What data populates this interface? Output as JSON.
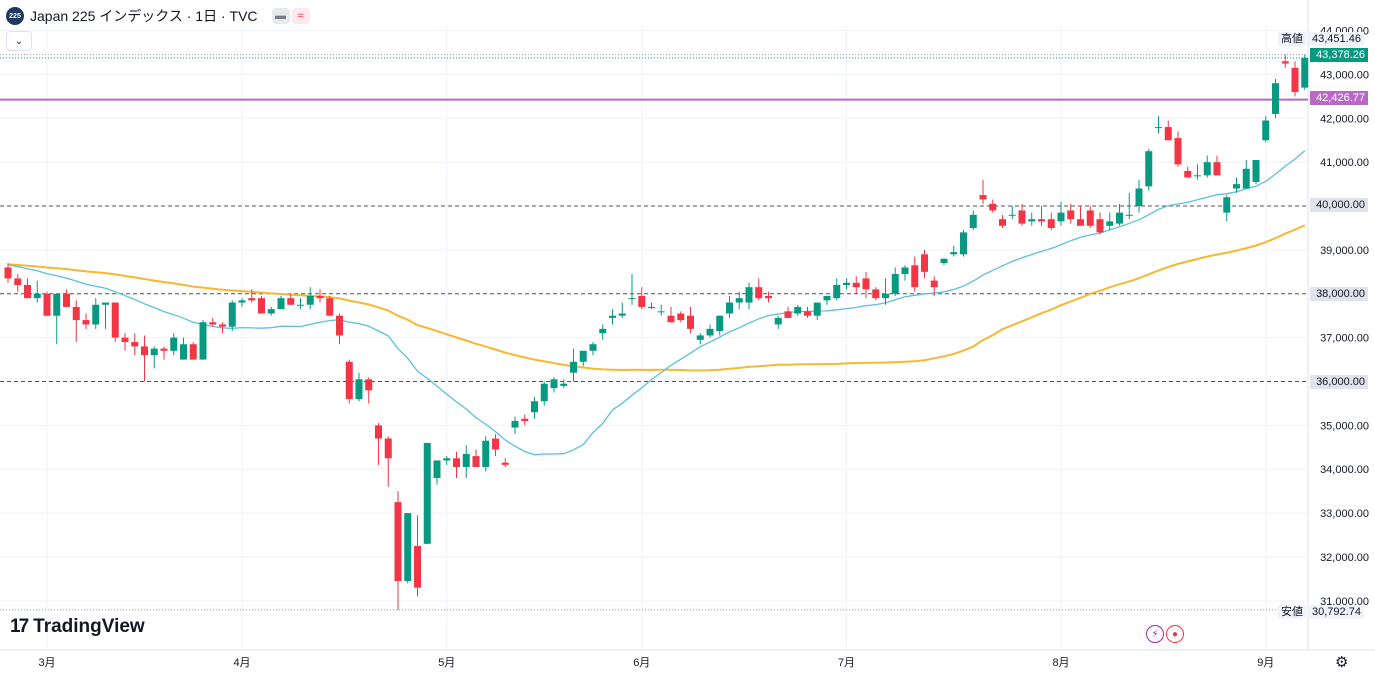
{
  "header": {
    "symbol_badge": "225",
    "title": "Japan 225 インデックス · 1日 · TVC",
    "status_icons": [
      "minus-icon",
      "wave-icon"
    ]
  },
  "watermark": "TradingView",
  "colors": {
    "up": "#089981",
    "down": "#f23645",
    "ma_fast": "#5bc0de",
    "ma_slow": "#f7b731",
    "hline": "#ba68c8",
    "level": "#555555"
  },
  "chart_data": {
    "type": "candlestick",
    "y_ticks": [
      "44,000.00",
      "43,000.00",
      "42,000.00",
      "41,000.00",
      "39,000.00",
      "37,000.00",
      "35,000.00",
      "34,000.00",
      "33,000.00",
      "32,000.00",
      "31,000.00"
    ],
    "ylim": [
      30700,
      44150
    ],
    "x_ticks": [
      {
        "label": "3月",
        "i": 4
      },
      {
        "label": "4月",
        "i": 24
      },
      {
        "label": "5月",
        "i": 45
      },
      {
        "label": "6月",
        "i": 65
      },
      {
        "label": "7月",
        "i": 86
      },
      {
        "label": "8月",
        "i": 108
      },
      {
        "label": "9月",
        "i": 129
      }
    ],
    "levels": [
      {
        "value": 40000,
        "label": "40,000.00"
      },
      {
        "value": 38000,
        "label": "38,000.00"
      },
      {
        "value": 36000,
        "label": "36,000.00"
      }
    ],
    "horizontal_line": {
      "value": 42426.77,
      "label": "42,426.77"
    },
    "close_marker": {
      "value": 43378.26,
      "label": "43,378.26"
    },
    "high": {
      "label": "高値",
      "value": "43,451.46"
    },
    "low": {
      "label": "安値",
      "value": "30,792.74"
    },
    "candles": [
      [
        38600,
        38700,
        38250,
        38350
      ],
      [
        38350,
        38450,
        38050,
        38200
      ],
      [
        38200,
        38350,
        37900,
        37900
      ],
      [
        37900,
        38300,
        37800,
        38000
      ],
      [
        38000,
        38050,
        37500,
        37500
      ],
      [
        37500,
        38000,
        36850,
        38000
      ],
      [
        38000,
        38100,
        37800,
        37700
      ],
      [
        37700,
        37850,
        36900,
        37400
      ],
      [
        37400,
        37550,
        37200,
        37300
      ],
      [
        37300,
        37900,
        37200,
        37750
      ],
      [
        37750,
        37800,
        37200,
        37800
      ],
      [
        37800,
        37800,
        36900,
        37000
      ],
      [
        37000,
        37100,
        36700,
        36900
      ],
      [
        36900,
        37100,
        36600,
        36800
      ],
      [
        36800,
        37050,
        36000,
        36600
      ],
      [
        36600,
        36800,
        36300,
        36750
      ],
      [
        36750,
        36800,
        36500,
        36700
      ],
      [
        36700,
        37100,
        36600,
        37000
      ],
      [
        36500,
        37000,
        36500,
        36850
      ],
      [
        36850,
        36900,
        36500,
        36500
      ],
      [
        36500,
        37400,
        36500,
        37350
      ],
      [
        37350,
        37450,
        37250,
        37300
      ],
      [
        37300,
        37350,
        37100,
        37250
      ],
      [
        37250,
        37850,
        37150,
        37800
      ],
      [
        37800,
        37900,
        37700,
        37850
      ],
      [
        37900,
        38100,
        37800,
        37850
      ],
      [
        37900,
        37950,
        37550,
        37550
      ],
      [
        37550,
        37700,
        37500,
        37650
      ],
      [
        37650,
        37950,
        37650,
        37900
      ],
      [
        37900,
        38000,
        37750,
        37750
      ],
      [
        37750,
        37900,
        37650,
        37750
      ],
      [
        37750,
        38150,
        37650,
        37950
      ],
      [
        37950,
        38100,
        37800,
        37900
      ],
      [
        37900,
        37950,
        37500,
        37500
      ],
      [
        37500,
        37550,
        36850,
        37050
      ],
      [
        36450,
        36500,
        35500,
        35600
      ],
      [
        35600,
        36200,
        35550,
        36050
      ],
      [
        36050,
        36100,
        35500,
        35800
      ],
      [
        35000,
        35050,
        34100,
        34700
      ],
      [
        34700,
        34750,
        33600,
        34250
      ],
      [
        33250,
        33500,
        30792,
        31450
      ],
      [
        31450,
        33000,
        31400,
        33000
      ],
      [
        32250,
        32950,
        31100,
        31300
      ],
      [
        32300,
        34600,
        32300,
        34600
      ],
      [
        33800,
        34200,
        33650,
        34200
      ],
      [
        34200,
        34300,
        34100,
        34250
      ],
      [
        34250,
        34400,
        33800,
        34050
      ],
      [
        34050,
        34550,
        33800,
        34350
      ],
      [
        34300,
        34450,
        34100,
        34050
      ],
      [
        34050,
        34750,
        33950,
        34650
      ],
      [
        34700,
        34800,
        34300,
        34450
      ],
      [
        34150,
        34250,
        34050,
        34100
      ],
      [
        34950,
        35200,
        34800,
        35100
      ],
      [
        35150,
        35250,
        35000,
        35100
      ],
      [
        35300,
        35650,
        35150,
        35550
      ],
      [
        35550,
        36000,
        35450,
        35950
      ],
      [
        35850,
        36100,
        35750,
        36050
      ],
      [
        35900,
        36050,
        35850,
        35950
      ],
      [
        36200,
        36750,
        36000,
        36450
      ],
      [
        36450,
        36650,
        36350,
        36700
      ],
      [
        36700,
        36900,
        36600,
        36850
      ],
      [
        37100,
        37300,
        36950,
        37200
      ],
      [
        37450,
        37650,
        37300,
        37500
      ],
      [
        37500,
        37800,
        37450,
        37550
      ],
      [
        37900,
        38450,
        37750,
        37900
      ],
      [
        37950,
        38150,
        37650,
        37700
      ],
      [
        37700,
        37800,
        37650,
        37700
      ],
      [
        37600,
        37750,
        37500,
        37600
      ],
      [
        37500,
        37700,
        37450,
        37350
      ],
      [
        37550,
        37600,
        37350,
        37400
      ],
      [
        37500,
        37700,
        37100,
        37200
      ],
      [
        36950,
        37100,
        36850,
        37050
      ],
      [
        37050,
        37300,
        37000,
        37200
      ],
      [
        37150,
        37500,
        37050,
        37500
      ],
      [
        37550,
        37950,
        37450,
        37800
      ],
      [
        37800,
        38050,
        37650,
        37900
      ],
      [
        37800,
        38250,
        37650,
        38150
      ],
      [
        38150,
        38350,
        37850,
        37900
      ],
      [
        37950,
        38050,
        37800,
        37900
      ],
      [
        37300,
        37500,
        37200,
        37450
      ],
      [
        37600,
        37700,
        37450,
        37450
      ],
      [
        37550,
        37750,
        37500,
        37700
      ],
      [
        37600,
        37700,
        37450,
        37500
      ],
      [
        37500,
        37700,
        37400,
        37800
      ],
      [
        37850,
        37950,
        37750,
        37950
      ],
      [
        37900,
        38350,
        37850,
        38200
      ],
      [
        38200,
        38350,
        38100,
        38250
      ],
      [
        38250,
        38400,
        38000,
        38150
      ],
      [
        38350,
        38500,
        37900,
        38100
      ],
      [
        38100,
        38150,
        37850,
        37900
      ],
      [
        37900,
        38350,
        37750,
        38000
      ],
      [
        38000,
        38600,
        37950,
        38450
      ],
      [
        38450,
        38650,
        38300,
        38600
      ],
      [
        38650,
        38850,
        38050,
        38150
      ],
      [
        38900,
        39000,
        38350,
        38500
      ],
      [
        38300,
        38400,
        37950,
        38150
      ],
      [
        38700,
        38800,
        38650,
        38800
      ],
      [
        38900,
        39100,
        38850,
        38950
      ],
      [
        38900,
        39450,
        38850,
        39400
      ],
      [
        39500,
        39900,
        39450,
        39800
      ],
      [
        40250,
        40600,
        40050,
        40150
      ],
      [
        40050,
        40150,
        39850,
        39900
      ],
      [
        39700,
        39800,
        39500,
        39550
      ],
      [
        39800,
        40000,
        39700,
        39800
      ],
      [
        39900,
        40050,
        39550,
        39600
      ],
      [
        39650,
        39850,
        39550,
        39700
      ],
      [
        39700,
        40000,
        39550,
        39650
      ],
      [
        39700,
        39850,
        39450,
        39500
      ],
      [
        39650,
        40100,
        39550,
        39850
      ],
      [
        39900,
        40050,
        39600,
        39700
      ],
      [
        39700,
        40000,
        39650,
        39550
      ],
      [
        39900,
        40000,
        39500,
        39550
      ],
      [
        39700,
        39850,
        39350,
        39400
      ],
      [
        39550,
        39850,
        39450,
        39650
      ],
      [
        39600,
        40050,
        39550,
        39850
      ],
      [
        39800,
        40300,
        39700,
        39800
      ],
      [
        40000,
        40600,
        39850,
        40400
      ],
      [
        40450,
        41300,
        40350,
        41250
      ],
      [
        41800,
        42050,
        41650,
        41800
      ],
      [
        41800,
        41950,
        41500,
        41500
      ],
      [
        41550,
        41700,
        40900,
        40950
      ],
      [
        40800,
        40900,
        40650,
        40650
      ],
      [
        40700,
        40950,
        40600,
        40700
      ],
      [
        40700,
        41150,
        40650,
        41000
      ],
      [
        41000,
        41150,
        40700,
        40700
      ],
      [
        39850,
        40250,
        39650,
        40200
      ],
      [
        40400,
        40650,
        40300,
        40500
      ],
      [
        40400,
        41050,
        40400,
        40850
      ],
      [
        40550,
        41050,
        40500,
        41050
      ],
      [
        41500,
        42050,
        41450,
        41950
      ],
      [
        42100,
        42900,
        42000,
        42800
      ],
      [
        43300,
        43451,
        43150,
        43250
      ],
      [
        43150,
        43300,
        42500,
        42600
      ],
      [
        42700,
        43451,
        42650,
        43378
      ]
    ]
  }
}
